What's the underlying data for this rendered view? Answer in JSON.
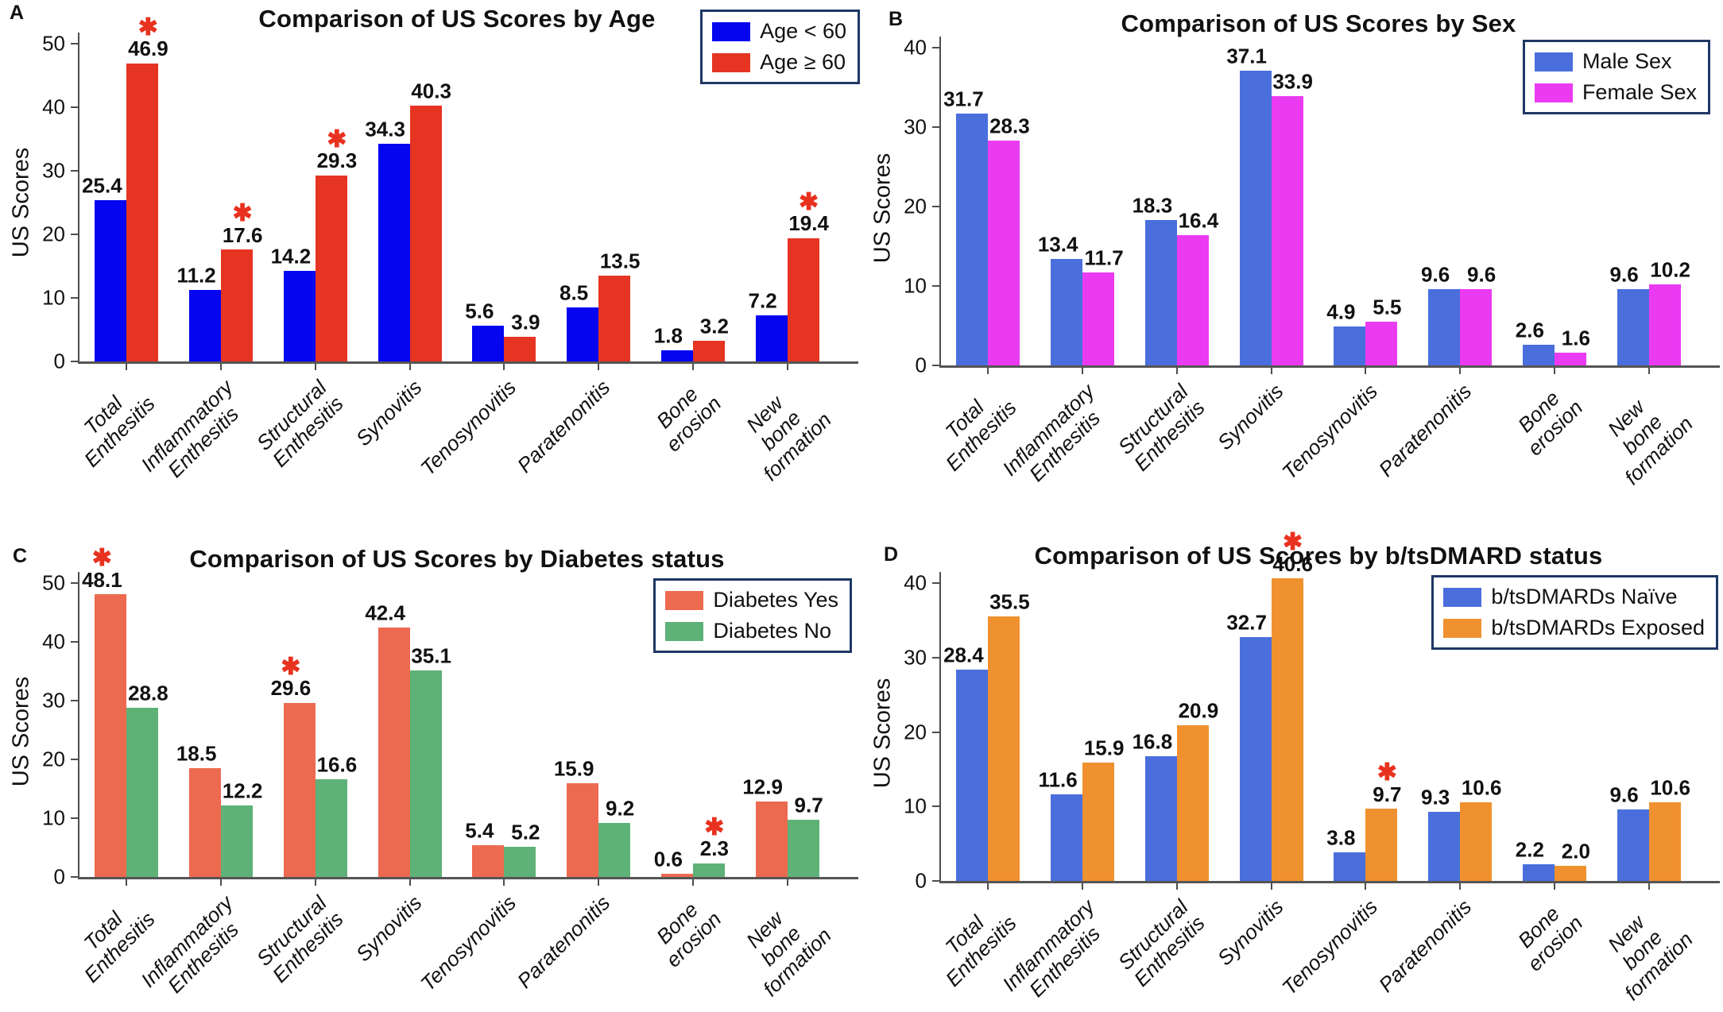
{
  "styles": {
    "sig_color": "#E8321F",
    "legend_border_color": "#1F3864",
    "axis_color": "#4d4d4d"
  },
  "chart_data": [
    {
      "type": "bar",
      "panel_label": "A",
      "title": "Comparison of US Scores by Age",
      "ylabel": "US Scores",
      "ylim": [
        0,
        50
      ],
      "yticks": [
        0,
        10,
        20,
        30,
        40,
        50
      ],
      "legend_position": "top-right",
      "grid": false,
      "categories": [
        "Total\nEnthesitis",
        "Inflammatory\nEnthesitis",
        "Structural\nEnthesitis",
        "Synovitis",
        "Tenosynovitis",
        "Paratenonitis",
        "Bone erosion",
        "New bone\nformation"
      ],
      "series": [
        {
          "name": "Age < 60",
          "color": "#0505F0",
          "values": [
            25.4,
            11.2,
            14.2,
            34.3,
            5.6,
            8.5,
            1.8,
            7.2
          ]
        },
        {
          "name": "Age ≥ 60",
          "color": "#E63422",
          "values": [
            46.9,
            17.6,
            29.3,
            40.3,
            3.9,
            13.5,
            3.2,
            19.4
          ]
        }
      ],
      "sig_markers": [
        {
          "category": 0,
          "series": 1,
          "symbol": "✱"
        },
        {
          "category": 1,
          "series": 1,
          "symbol": "✱"
        },
        {
          "category": 2,
          "series": 1,
          "symbol": "✱"
        },
        {
          "category": 7,
          "series": 1,
          "symbol": "✱"
        }
      ]
    },
    {
      "type": "bar",
      "panel_label": "B",
      "title": "Comparison of US Scores by Sex",
      "ylabel": "US Scores",
      "ylim": [
        0,
        40
      ],
      "yticks": [
        0,
        10,
        20,
        30,
        40
      ],
      "legend_position": "top-right",
      "grid": false,
      "categories": [
        "Total\nEnthesitis",
        "Inflammatory\nEnthesitis",
        "Structural\nEnthesitis",
        "Synovitis",
        "Tenosynovitis",
        "Paratenonitis",
        "Bone erosion",
        "New bone\nformation"
      ],
      "series": [
        {
          "name": "Male Sex",
          "color": "#4A6FDC",
          "values": [
            31.7,
            13.4,
            18.3,
            37.1,
            4.9,
            9.6,
            2.6,
            9.6
          ]
        },
        {
          "name": "Female Sex",
          "color": "#EB3BF2",
          "values": [
            28.3,
            11.7,
            16.4,
            33.9,
            5.5,
            9.6,
            1.6,
            10.2
          ]
        }
      ],
      "sig_markers": []
    },
    {
      "type": "bar",
      "panel_label": "C",
      "title": "Comparison of US Scores by Diabetes status",
      "ylabel": "US Scores",
      "ylim": [
        0,
        50
      ],
      "yticks": [
        0,
        10,
        20,
        30,
        40,
        50
      ],
      "legend_position": "top-right",
      "grid": false,
      "categories": [
        "Total\nEnthesitis",
        "Inflammatory\nEnthesitis",
        "Structural\nEnthesitis",
        "Synovitis",
        "Tenosynovitis",
        "Paratenonitis",
        "Bone erosion",
        "New bone\nformation"
      ],
      "series": [
        {
          "name": "Diabetes Yes",
          "color": "#EC6A50",
          "values": [
            48.1,
            18.5,
            29.6,
            42.4,
            5.4,
            15.9,
            0.6,
            12.9
          ]
        },
        {
          "name": "Diabetes No",
          "color": "#5EB277",
          "values": [
            28.8,
            12.2,
            16.6,
            35.1,
            5.2,
            9.2,
            2.3,
            9.7
          ]
        }
      ],
      "sig_markers": [
        {
          "category": 0,
          "series": 0,
          "symbol": "✱"
        },
        {
          "category": 2,
          "series": 0,
          "symbol": "✱"
        },
        {
          "category": 6,
          "series": 1,
          "symbol": "✱"
        }
      ]
    },
    {
      "type": "bar",
      "panel_label": "D",
      "title": "Comparison of US Scores by b/tsDMARD status",
      "ylabel": "US Scores",
      "ylim": [
        0,
        40
      ],
      "yticks": [
        0,
        10,
        20,
        30,
        40
      ],
      "legend_position": "top-right",
      "grid": false,
      "categories": [
        "Total\nEnthesitis",
        "Inflammatory\nEnthesitis",
        "Structural\nEnthesitis",
        "Synovitis",
        "Tenosynovitis",
        "Paratenonitis",
        "Bone erosion",
        "New bone\nformation"
      ],
      "series": [
        {
          "name": "b/tsDMARDs Naïve",
          "color": "#4A6FDC",
          "values": [
            28.4,
            11.6,
            16.8,
            32.7,
            3.8,
            9.3,
            2.2,
            9.6
          ]
        },
        {
          "name": "b/tsDMARDs Exposed",
          "color": "#F0912F",
          "values": [
            35.5,
            15.9,
            20.9,
            40.6,
            9.7,
            10.6,
            2.0,
            10.6
          ]
        }
      ],
      "sig_markers": [
        {
          "category": 3,
          "series": 1,
          "symbol": "✱"
        },
        {
          "category": 4,
          "series": 1,
          "symbol": "✱"
        }
      ]
    }
  ]
}
